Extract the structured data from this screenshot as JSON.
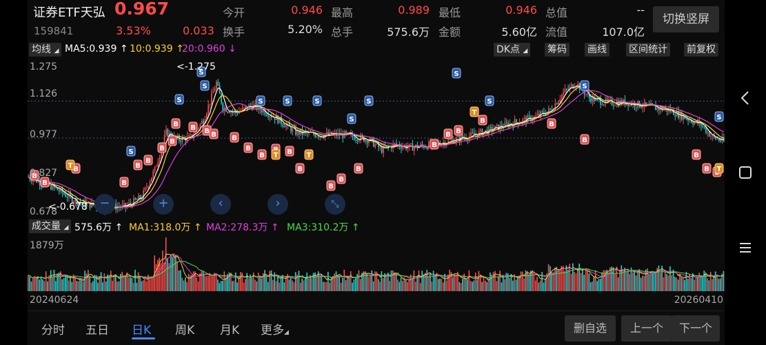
{
  "header": {
    "name": "证券ETF天弘",
    "price": "0.967",
    "code": "159841",
    "change_pct": "3.53%",
    "change_amt": "0.033",
    "quotes": [
      {
        "label": "今开",
        "value": "0.946",
        "color": "red"
      },
      {
        "label": "最高",
        "value": "0.989",
        "color": "red"
      },
      {
        "label": "最低",
        "value": "0.946",
        "color": "red"
      },
      {
        "label": "总值",
        "value": "--",
        "color": "white"
      },
      {
        "label": "换手",
        "value": "5.20%",
        "color": "white"
      },
      {
        "label": "总手",
        "value": "575.6万",
        "color": "white"
      },
      {
        "label": "金额",
        "value": "5.60亿",
        "color": "white"
      },
      {
        "label": "流值",
        "value": "107.0亿",
        "color": "white"
      }
    ],
    "switch_label": "切换竖屏"
  },
  "indicator_row": {
    "ma_button": "均线",
    "ma5": "MA5:0.939",
    "ma10": "10:0.939",
    "ma20": "20:0.960",
    "tools": [
      "DK点",
      "筹码",
      "画线",
      "区间统计",
      "前复权"
    ]
  },
  "kchart": {
    "y_labels": [
      "1.275",
      "1.126",
      "0.977",
      "0.827",
      "0.678"
    ],
    "high_label": "<-1.275",
    "low_label": "<-0.678",
    "signal_buy": "B",
    "signal_sell": "S",
    "signal_t": "T"
  },
  "volume_row": {
    "button": "成交量",
    "vol": "575.6万",
    "ma1": "MA1:318.0万",
    "ma2": "MA2:278.3万",
    "ma3": "MA3:310.2万",
    "max_label": "1879万"
  },
  "dates": {
    "start": "20240624",
    "end": "20260410"
  },
  "bottom": {
    "tabs": [
      "分时",
      "五日",
      "日K",
      "周K",
      "月K",
      "更多"
    ],
    "active_tab": "日K",
    "buttons": [
      "删自选",
      "上一个",
      "下一个"
    ]
  },
  "colors": {
    "up": "#ff4b4b",
    "down": "#1fd3d3",
    "ma5": "#ffffff",
    "ma10": "#ffd21f",
    "ma20": "#e040e0",
    "accent": "#3f8cff"
  },
  "icons": {
    "nav_back": "chevron-left-icon",
    "nav_home": "square-icon",
    "nav_menu": "menu-icon"
  }
}
